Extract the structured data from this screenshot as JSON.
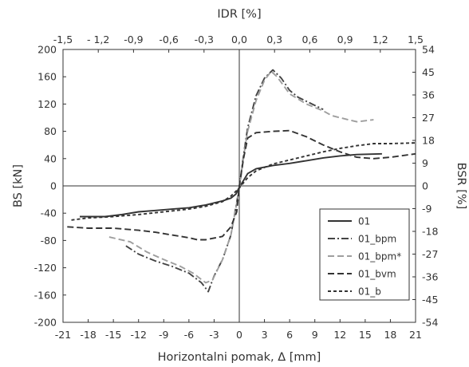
{
  "chart_data": {
    "type": "line",
    "xlabel": "Horizontalni pomak, Δ [mm]",
    "ylabel": "BS [kN]",
    "top_xlabel": "IDR [%]",
    "right_ylabel": "BSR [%]",
    "xlim": [
      -21,
      21
    ],
    "ylim": [
      -200,
      200
    ],
    "x_ticks": [
      -21,
      -18,
      -15,
      -12,
      -9,
      -6,
      -3,
      0,
      3,
      6,
      9,
      12,
      15,
      18,
      21
    ],
    "x_tick_labels": [
      "-21",
      "-18",
      "-15",
      "-12",
      "-9",
      "-6",
      "-3",
      "0",
      "3",
      "6",
      "9",
      "12",
      "15",
      "18",
      "21"
    ],
    "y_ticks": [
      -200,
      -160,
      -120,
      -80,
      -40,
      0,
      40,
      80,
      120,
      160,
      200
    ],
    "y_tick_labels": [
      "-200",
      "-160",
      "-120",
      "-80",
      "-40",
      "0",
      "40",
      "80",
      "120",
      "160",
      "200"
    ],
    "top_ticks": [
      -1.5,
      -1.2,
      -0.9,
      -0.6,
      -0.3,
      0,
      0.3,
      0.6,
      0.9,
      1.2,
      1.5
    ],
    "top_tick_labels": [
      "-1,5",
      "- 1,2",
      "-0,9",
      "-0,6",
      "-0,3",
      "0,0",
      "0,3",
      "0,6",
      "0,9",
      "1,2",
      "1,5"
    ],
    "right_ticks": [
      -54,
      -45,
      -36,
      -27,
      -18,
      -9,
      0,
      9,
      18,
      27,
      36,
      45,
      54
    ],
    "right_tick_labels": [
      "-54",
      "-45",
      "-36",
      "-27",
      "-18",
      "-9",
      "0",
      "9",
      "18",
      "27",
      "36",
      "45",
      "54"
    ],
    "grid": false,
    "legend_position": "lower-right",
    "series": [
      {
        "name": "01",
        "style": "solid",
        "color": "#333333",
        "x": [
          -19,
          -16,
          -14,
          -12,
          -10,
          -8,
          -6,
          -4,
          -2,
          -1,
          -0.4,
          0,
          0.5,
          1,
          2,
          4,
          6,
          8,
          10,
          12,
          14,
          17
        ],
        "y": [
          -45,
          -45,
          -42,
          -38,
          -36,
          -34,
          -32,
          -28,
          -22,
          -18,
          -12,
          -2,
          8,
          18,
          25,
          30,
          33,
          37,
          41,
          44,
          46,
          47
        ]
      },
      {
        "name": "01_bpm",
        "style": "dashdot",
        "color": "#444444",
        "x": [
          -13.5,
          -12,
          -10,
          -8,
          -6,
          -4.5,
          -3.7,
          -3,
          -2,
          -1,
          0,
          0.5,
          1,
          2,
          3,
          4,
          5,
          6,
          7,
          8,
          9,
          10
        ],
        "y": [
          -88,
          -100,
          -110,
          -118,
          -128,
          -142,
          -155,
          -132,
          -108,
          -72,
          -3,
          45,
          85,
          132,
          158,
          170,
          158,
          140,
          130,
          124,
          118,
          112
        ]
      },
      {
        "name": "01_bpm*",
        "style": "dash",
        "color": "#9e9e9e",
        "x": [
          -15.5,
          -13,
          -11,
          -9,
          -7,
          -5.5,
          -4,
          -3.2,
          -2,
          -1,
          0,
          0.5,
          1,
          2,
          3,
          3.8,
          4.5,
          6,
          8,
          10,
          11,
          13,
          14,
          16
        ],
        "y": [
          -75,
          -82,
          -97,
          -108,
          -118,
          -128,
          -142,
          -138,
          -108,
          -72,
          -5,
          42,
          80,
          125,
          155,
          168,
          160,
          135,
          120,
          110,
          103,
          97,
          94,
          97
        ]
      },
      {
        "name": "01_bvm",
        "style": "dash",
        "color": "#333333",
        "x": [
          -20.5,
          -18,
          -15,
          -12,
          -10,
          -8,
          -6,
          -5,
          -4,
          -2,
          -1,
          -0.3,
          0,
          0.5,
          1,
          2,
          4,
          6,
          8,
          10,
          12,
          14,
          16,
          18,
          21
        ],
        "y": [
          -60,
          -62,
          -62,
          -65,
          -68,
          -72,
          -76,
          -79,
          -79,
          -74,
          -60,
          -38,
          0,
          40,
          70,
          78,
          80,
          81,
          72,
          60,
          50,
          42,
          40,
          42,
          47
        ]
      },
      {
        "name": "01_b",
        "style": "shortdash",
        "color": "#333333",
        "x": [
          -20,
          -18,
          -15,
          -12,
          -9,
          -6,
          -4,
          -2,
          -1,
          0,
          1,
          2,
          4,
          6,
          8,
          10,
          12,
          14,
          16,
          18,
          21
        ],
        "y": [
          -50,
          -47,
          -45,
          -42,
          -38,
          -34,
          -30,
          -23,
          -15,
          -3,
          12,
          22,
          32,
          38,
          44,
          50,
          55,
          59,
          62,
          62,
          63
        ]
      }
    ]
  }
}
